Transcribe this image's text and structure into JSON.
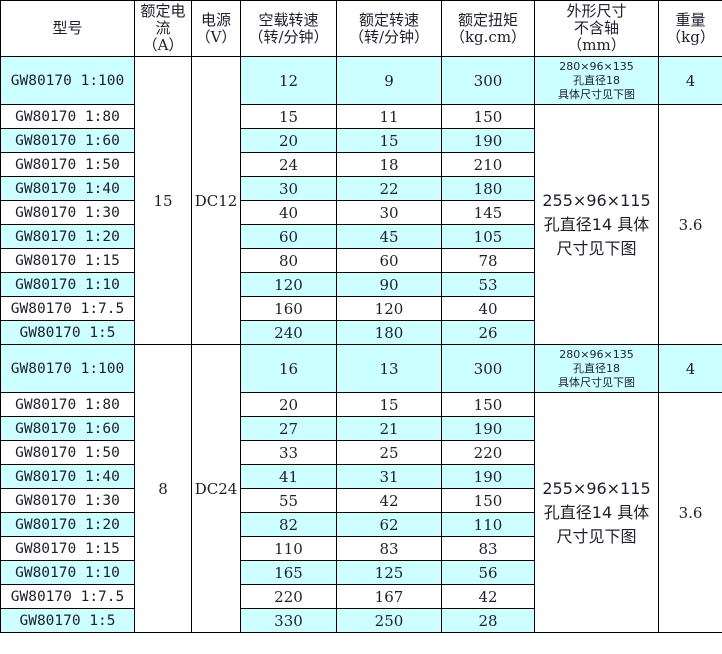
{
  "headers": [
    "型号",
    "额定电流\n（A）",
    "电源\n（V）",
    "空载转速\n（转/分钟）",
    "额定转速\n（转/分钟）",
    "额定扭矩\n（kg.cm）",
    "外形尺寸\n不含轴\n（mm）",
    "重量\n（kg）"
  ],
  "row_highlight_color": "#ccffff",
  "groups": [
    {
      "current": "15",
      "voltage": "DC12",
      "first": {
        "model": "GW80170 1:100",
        "noload": "12",
        "rated": "9",
        "torque": "300",
        "dims": [
          "280×96×135",
          "孔直径18",
          "具体尺寸见下图"
        ],
        "weight": "4"
      },
      "rows": [
        {
          "model": "GW80170 1:80",
          "noload": "15",
          "rated": "11",
          "torque": "150"
        },
        {
          "model": "GW80170 1:60",
          "noload": "20",
          "rated": "15",
          "torque": "190"
        },
        {
          "model": "GW80170 1:50",
          "noload": "24",
          "rated": "18",
          "torque": "210"
        },
        {
          "model": "GW80170 1:40",
          "noload": "30",
          "rated": "22",
          "torque": "180"
        },
        {
          "model": "GW80170 1:30",
          "noload": "40",
          "rated": "30",
          "torque": "145"
        },
        {
          "model": "GW80170 1:20",
          "noload": "60",
          "rated": "45",
          "torque": "105"
        },
        {
          "model": "GW80170 1:15",
          "noload": "80",
          "rated": "60",
          "torque": "78"
        },
        {
          "model": "GW80170 1:10",
          "noload": "120",
          "rated": "90",
          "torque": "53"
        },
        {
          "model": "GW80170 1:7.5",
          "noload": "160",
          "rated": "120",
          "torque": "40"
        },
        {
          "model": "GW80170 1:5",
          "noload": "240",
          "rated": "180",
          "torque": "26"
        }
      ],
      "dims": "255×96×115 孔直径14 具体尺寸见下图",
      "weight": "3.6"
    },
    {
      "current": "8",
      "voltage": "DC24",
      "first": {
        "model": "GW80170 1:100",
        "noload": "16",
        "rated": "13",
        "torque": "300",
        "dims": [
          "280×96×135",
          "孔直径18",
          "具体尺寸见下图"
        ],
        "weight": "4"
      },
      "rows": [
        {
          "model": "GW80170 1:80",
          "noload": "20",
          "rated": "15",
          "torque": "150"
        },
        {
          "model": "GW80170 1:60",
          "noload": "27",
          "rated": "21",
          "torque": "190"
        },
        {
          "model": "GW80170 1:50",
          "noload": "33",
          "rated": "25",
          "torque": "220"
        },
        {
          "model": "GW80170 1:40",
          "noload": "41",
          "rated": "31",
          "torque": "190"
        },
        {
          "model": "GW80170 1:30",
          "noload": "55",
          "rated": "42",
          "torque": "150"
        },
        {
          "model": "GW80170 1:20",
          "noload": "82",
          "rated": "62",
          "torque": "110"
        },
        {
          "model": "GW80170 1:15",
          "noload": "110",
          "rated": "83",
          "torque": "83"
        },
        {
          "model": "GW80170 1:10",
          "noload": "165",
          "rated": "125",
          "torque": "56"
        },
        {
          "model": "GW80170 1:7.5",
          "noload": "220",
          "rated": "167",
          "torque": "42"
        },
        {
          "model": "GW80170 1:5",
          "noload": "330",
          "rated": "250",
          "torque": "28"
        }
      ],
      "dims": "255×96×115 孔直径14 具体尺寸见下图",
      "weight": "3.6"
    }
  ]
}
